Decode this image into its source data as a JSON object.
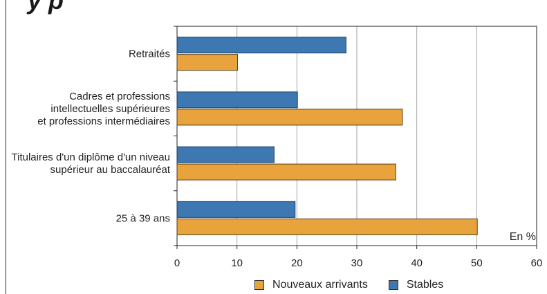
{
  "chart_data": {
    "type": "bar",
    "orientation": "horizontal",
    "title_fragment": "y p",
    "categories": [
      [
        "Retraités"
      ],
      [
        "Cadres et professions",
        "intellectuelles supérieures",
        "et professions intermédiaires"
      ],
      [
        "Titulaires d'un diplôme d'un niveau",
        "supérieur au baccalauréat"
      ],
      [
        "25 à 39 ans"
      ]
    ],
    "series": [
      {
        "name": "Stables",
        "color": "#3e78b2",
        "values": [
          28.2,
          20.1,
          16.2,
          19.7
        ]
      },
      {
        "name": "Nouveaux arrivants",
        "color": "#e8a33d",
        "values": [
          10.1,
          37.6,
          36.5,
          50.1
        ]
      }
    ],
    "xlim": [
      0,
      60
    ],
    "xticks": [
      "0",
      "10",
      "20",
      "30",
      "40",
      "50",
      "60"
    ],
    "unit_label": "En %",
    "grid": true,
    "legend_position": "bottom",
    "legend": [
      "Nouveaux arrivants",
      "Stables"
    ]
  }
}
